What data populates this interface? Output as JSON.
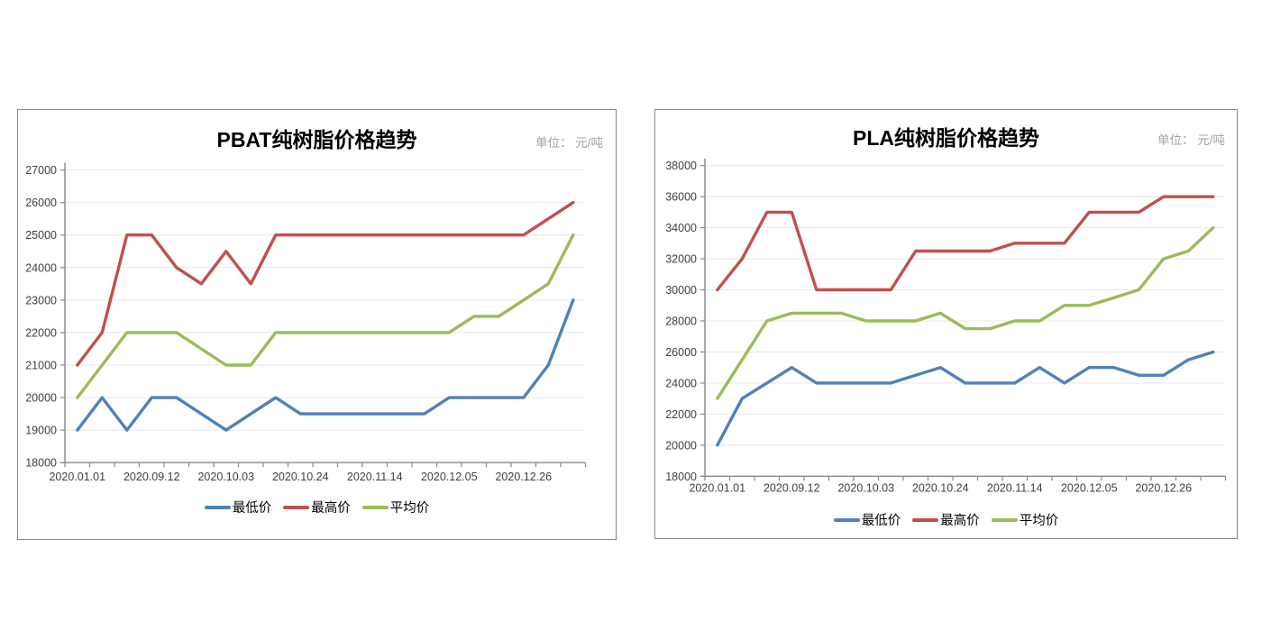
{
  "chart_data": [
    {
      "type": "line",
      "title": "PBAT纯树脂价格趋势",
      "unit_label": "单位： 元/吨",
      "ylim": [
        18000,
        27000
      ],
      "ytick_step": 1000,
      "y_tick_labels": [
        "18000",
        "19000",
        "20000",
        "21000",
        "22000",
        "23000",
        "24000",
        "25000",
        "26000",
        "27000"
      ],
      "x_tick_labels": [
        "2020.01.01",
        "2020.09.12",
        "2020.10.03",
        "2020.10.24",
        "2020.11.14",
        "2020.12.05",
        "2020.12.26"
      ],
      "label_interval": 3,
      "n_points": 21,
      "grid": true,
      "legend_position": "bottom",
      "series": [
        {
          "name": "最低价",
          "color": "#4F81BD",
          "values": [
            19000,
            20000,
            19000,
            20000,
            20000,
            19500,
            19000,
            19500,
            20000,
            19500,
            19500,
            19500,
            19500,
            19500,
            19500,
            20000,
            20000,
            20000,
            20000,
            21000,
            23000
          ]
        },
        {
          "name": "最高价",
          "color": "#C0504D",
          "values": [
            21000,
            22000,
            25000,
            25000,
            24000,
            23500,
            24500,
            23500,
            25000,
            25000,
            25000,
            25000,
            25000,
            25000,
            25000,
            25000,
            25000,
            25000,
            25000,
            25500,
            26000
          ]
        },
        {
          "name": "平均价",
          "color": "#9BBB59",
          "values": [
            20000,
            21000,
            22000,
            22000,
            22000,
            21500,
            21000,
            21000,
            22000,
            22000,
            22000,
            22000,
            22000,
            22000,
            22000,
            22000,
            22500,
            22500,
            23000,
            23500,
            25000
          ]
        }
      ]
    },
    {
      "type": "line",
      "title": "PLA纯树脂价格趋势",
      "unit_label": "单位： 元/吨",
      "ylim": [
        18000,
        38000
      ],
      "ytick_step": 2000,
      "y_tick_labels": [
        "18000",
        "20000",
        "22000",
        "24000",
        "26000",
        "28000",
        "30000",
        "32000",
        "34000",
        "36000",
        "38000"
      ],
      "x_tick_labels": [
        "2020.01.01",
        "2020.09.12",
        "2020.10.03",
        "2020.10.24",
        "2020.11.14",
        "2020.12.05",
        "2020.12.26"
      ],
      "label_interval": 3,
      "n_points": 21,
      "grid": true,
      "legend_position": "bottom",
      "series": [
        {
          "name": "最低价",
          "color": "#4F81BD",
          "values": [
            20000,
            23000,
            24000,
            25000,
            24000,
            24000,
            24000,
            24000,
            24500,
            25000,
            24000,
            24000,
            24000,
            25000,
            24000,
            25000,
            25000,
            24500,
            24500,
            25500,
            26000
          ]
        },
        {
          "name": "最高价",
          "color": "#C0504D",
          "values": [
            30000,
            32000,
            35000,
            35000,
            30000,
            30000,
            30000,
            30000,
            32500,
            32500,
            32500,
            32500,
            33000,
            33000,
            33000,
            35000,
            35000,
            35000,
            36000,
            36000,
            36000
          ]
        },
        {
          "name": "平均价",
          "color": "#9BBB59",
          "values": [
            23000,
            25500,
            28000,
            28500,
            28500,
            28500,
            28000,
            28000,
            28000,
            28500,
            27500,
            27500,
            28000,
            28000,
            29000,
            29000,
            29500,
            30000,
            32000,
            32500,
            34000
          ]
        }
      ]
    }
  ]
}
